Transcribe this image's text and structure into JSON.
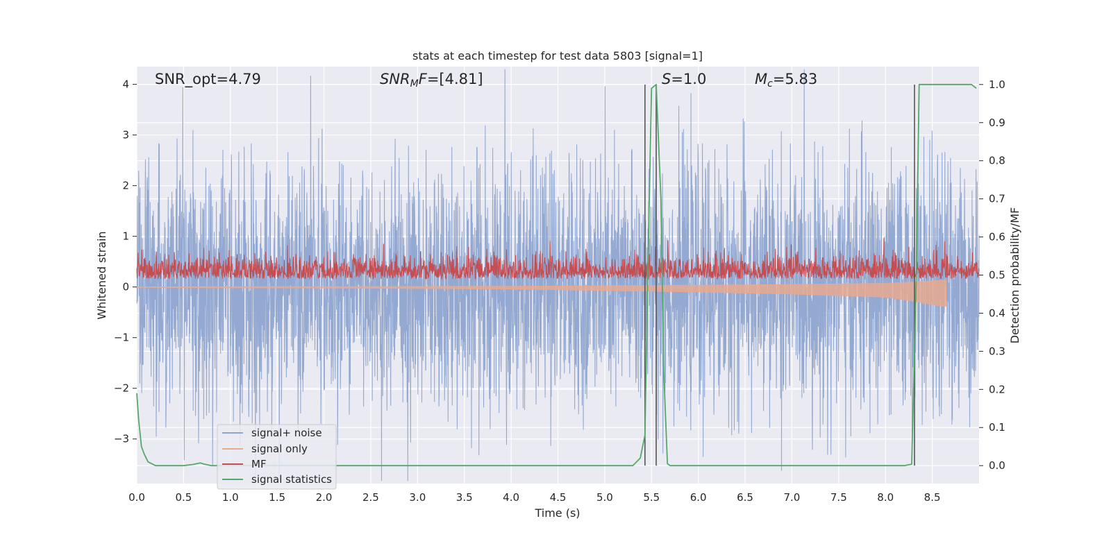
{
  "chart_data": {
    "type": "line",
    "title": "stats at each timestep for test data 5803 [signal=1]",
    "xlabel": "Time (s)",
    "ylabel": "Whitened strain",
    "y2label": "Detection probability/MF",
    "xlim": [
      0.0,
      9.0
    ],
    "ylim": [
      -3.88,
      4.35
    ],
    "y2lim": [
      -0.047,
      1.047
    ],
    "x_ticks": [
      "0.0",
      "0.5",
      "1.0",
      "1.5",
      "2.0",
      "2.5",
      "3.0",
      "3.5",
      "4.0",
      "4.5",
      "5.0",
      "5.5",
      "6.0",
      "6.5",
      "7.0",
      "7.5",
      "8.0",
      "8.5"
    ],
    "y_ticks": [
      "4",
      "3",
      "2",
      "1",
      "0",
      "−1",
      "−2",
      "−3"
    ],
    "y2_ticks": [
      "1.0",
      "0.9",
      "0.8",
      "0.7",
      "0.6",
      "0.5",
      "0.4",
      "0.3",
      "0.2",
      "0.1",
      "0.0"
    ],
    "grid": true,
    "legend_position": "lower-left",
    "annotations": {
      "snr_opt": "SNR_opt=4.79",
      "snr_mf_base": "SNR",
      "snr_mf_sub": "M",
      "snr_mf_tail": "F=[4.81]",
      "s_label": "S",
      "s_value": "=1.0",
      "mc_base": "M",
      "mc_sub": "c",
      "mc_value": "=5.83"
    },
    "vertical_markers_x": [
      5.43,
      5.55,
      8.31
    ],
    "series": [
      {
        "name": "signal+ noise",
        "axis": "left",
        "color": "#8fa5cf",
        "noise_amplitude": 1.2,
        "x_range": [
          0.0,
          9.0
        ]
      },
      {
        "name": "signal only",
        "axis": "left",
        "color": "#e8a991",
        "envelope": [
          [
            0.0,
            0.01
          ],
          [
            2.0,
            0.02
          ],
          [
            4.0,
            0.04
          ],
          [
            5.0,
            0.07
          ],
          [
            6.0,
            0.1
          ],
          [
            7.0,
            0.14
          ],
          [
            8.0,
            0.2
          ],
          [
            8.3,
            0.28
          ],
          [
            8.6,
            0.38
          ]
        ],
        "end_x": 8.65
      },
      {
        "name": "MF",
        "axis": "right",
        "color": "#c44e52",
        "baseline": 0.5,
        "range": [
          0.49,
          0.6
        ],
        "x_range": [
          0.0,
          9.0
        ]
      },
      {
        "name": "signal statistics",
        "axis": "right",
        "color": "#55a868",
        "x": [
          0.0,
          0.02,
          0.05,
          0.08,
          0.12,
          0.2,
          0.3,
          0.5,
          0.6,
          0.68,
          0.72,
          0.8,
          1.0,
          1.5,
          2.0,
          2.5,
          3.0,
          3.5,
          4.0,
          4.5,
          5.0,
          5.3,
          5.38,
          5.43,
          5.46,
          5.5,
          5.55,
          5.6,
          5.63,
          5.67,
          5.7,
          5.8,
          6.0,
          6.5,
          7.0,
          7.5,
          8.0,
          8.2,
          8.28,
          8.33,
          8.36,
          8.4,
          8.6,
          8.8,
          8.92,
          8.97
        ],
        "y": [
          0.19,
          0.12,
          0.05,
          0.03,
          0.01,
          0.0,
          0.0,
          0.0,
          0.003,
          0.007,
          0.004,
          0.0,
          0.0,
          0.0,
          0.0,
          0.0,
          0.0,
          0.0,
          0.0,
          0.0,
          0.0,
          0.0,
          0.02,
          0.08,
          0.5,
          0.99,
          1.0,
          0.7,
          0.25,
          0.005,
          0.0,
          0.0,
          0.0,
          0.0,
          0.0,
          0.0,
          0.0,
          0.0,
          0.004,
          0.5,
          1.0,
          1.0,
          1.0,
          1.0,
          1.0,
          0.99
        ]
      }
    ]
  }
}
